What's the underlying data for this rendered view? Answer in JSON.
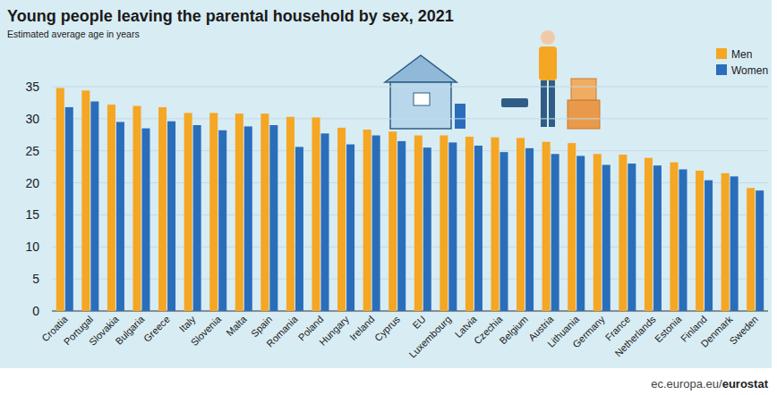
{
  "chart_data": {
    "type": "bar",
    "title": "Young people leaving the parental household by sex, 2021",
    "subtitle": "Estimated average age in years",
    "source": "ec.europa.eu/eurostat",
    "categories": [
      "Croatia",
      "Portugal",
      "Slovakia",
      "Bulgaria",
      "Greece",
      "Italy",
      "Slovenia",
      "Malta",
      "Spain",
      "Romania",
      "Poland",
      "Hungary",
      "Ireland",
      "Cyprus",
      "EU",
      "Luxembourg",
      "Latvia",
      "Czechia",
      "Belgium",
      "Austria",
      "Lithuania",
      "Germany",
      "France",
      "Netherlands",
      "Estonia",
      "Finland",
      "Denmark",
      "Sweden"
    ],
    "series": [
      {
        "name": "Men",
        "color": "#f5a623",
        "values": [
          34.8,
          34.4,
          32.2,
          32.0,
          31.8,
          30.9,
          30.9,
          30.8,
          30.8,
          30.3,
          30.2,
          28.6,
          28.3,
          28.0,
          27.4,
          27.4,
          27.2,
          27.1,
          27.0,
          26.4,
          26.2,
          24.5,
          24.4,
          23.9,
          23.2,
          21.9,
          21.5,
          19.2
        ]
      },
      {
        "name": "Women",
        "color": "#2a6ebb",
        "values": [
          31.8,
          32.7,
          29.5,
          28.5,
          29.6,
          29.0,
          28.2,
          28.8,
          29.0,
          25.6,
          27.7,
          26.0,
          27.4,
          26.5,
          25.5,
          26.3,
          25.8,
          24.8,
          25.4,
          24.5,
          24.2,
          22.8,
          23.0,
          22.7,
          22.1,
          20.4,
          21.0,
          18.8
        ]
      }
    ],
    "ylim": [
      0,
      35
    ],
    "yticks": [
      0,
      5,
      10,
      15,
      20,
      25,
      30,
      35
    ],
    "grid": true,
    "legend": "top right"
  }
}
